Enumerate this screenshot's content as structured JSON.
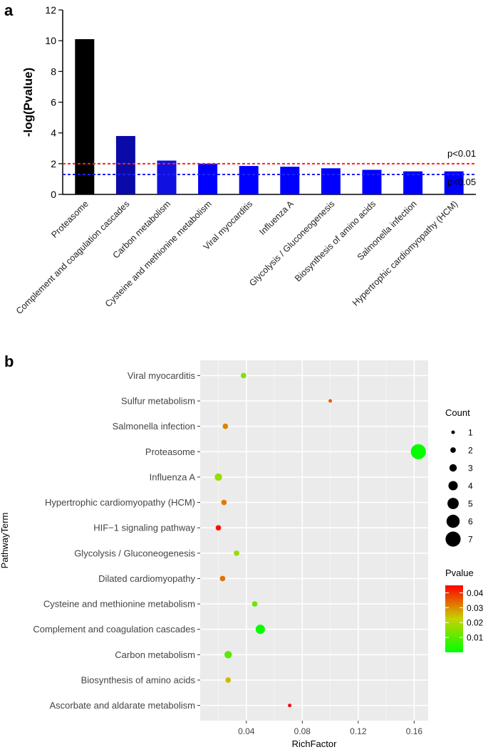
{
  "panels": {
    "a": "a",
    "b": "b"
  },
  "chart_data": [
    {
      "type": "bar",
      "panel": "a",
      "ylabel": "-log(Pvalue)",
      "xlabel": "",
      "ylim": [
        0,
        12
      ],
      "yticks": [
        0,
        2,
        4,
        6,
        8,
        10,
        12
      ],
      "categories": [
        "Proteasome",
        "Complement and coagulation cascades",
        "Carbon metabolism",
        "Cysteine and methionine metabolism",
        "Viral myocarditis",
        "Influenza A",
        "Glycolysis / Gluconeogenesis",
        "Biosynthesis of amino acids",
        "Salmonella infection",
        "Hypertrophic cardiomyopathy (HCM)"
      ],
      "values": [
        10.1,
        3.8,
        2.2,
        2.0,
        1.85,
        1.8,
        1.7,
        1.6,
        1.5,
        1.5
      ],
      "bar_colors": [
        "#000000",
        "#0a0aa8",
        "#1010e0",
        "#0000ff",
        "#0000ff",
        "#0000ff",
        "#0000ff",
        "#0000ff",
        "#0000ff",
        "#0000ff"
      ],
      "reference_lines": [
        {
          "label": "p<0.01",
          "value": 2.0,
          "color": "#ff2020"
        },
        {
          "label": "p<0.05",
          "value": 1.3,
          "color": "#2020ff"
        }
      ]
    },
    {
      "type": "scatter",
      "panel": "b",
      "xlabel": "RichFactor",
      "ylabel": "PathwayTerm",
      "xlim": [
        0.007,
        0.17
      ],
      "xticks": [
        0.04,
        0.08,
        0.12,
        0.16
      ],
      "xtick_labels": [
        "0.04",
        "0.08",
        "0.12",
        "0.16"
      ],
      "terms": [
        "Viral myocarditis",
        "Sulfur metabolism",
        "Salmonella infection",
        "Proteasome",
        "Influenza A",
        "Hypertrophic cardiomyopathy (HCM)",
        "HIF−1 signaling pathway",
        "Glycolysis / Gluconeogenesis",
        "Dilated cardiomyopathy",
        "Cysteine and methionine metabolism",
        "Complement and coagulation cascades",
        "Carbon metabolism",
        "Biosynthesis of amino acids",
        "Ascorbate and aldarate metabolism"
      ],
      "rich_factor": [
        0.038,
        0.1,
        0.025,
        0.163,
        0.02,
        0.024,
        0.02,
        0.033,
        0.023,
        0.046,
        0.05,
        0.027,
        0.027,
        0.071
      ],
      "count": [
        2,
        1,
        2,
        7,
        3,
        2,
        2,
        2,
        2,
        2,
        4,
        3,
        2,
        1
      ],
      "pvalue": [
        0.015,
        0.035,
        0.031,
        0.0005,
        0.017,
        0.032,
        0.043,
        0.017,
        0.033,
        0.012,
        0.001,
        0.01,
        0.025,
        0.045
      ],
      "legend_count": {
        "title": "Count",
        "values": [
          1,
          2,
          3,
          4,
          5,
          6,
          7
        ],
        "labels": [
          "1",
          "2",
          "3",
          "4",
          "5",
          "6",
          "7"
        ]
      },
      "legend_pvalue": {
        "title": "Pvalue",
        "range": [
          0,
          0.045
        ],
        "ticks": [
          0.01,
          0.02,
          0.03,
          0.04
        ],
        "tick_labels": [
          "0.01",
          "0.02",
          "0.03",
          "0.04"
        ],
        "colors": [
          "#00ff00",
          "#ff0000"
        ]
      }
    }
  ]
}
